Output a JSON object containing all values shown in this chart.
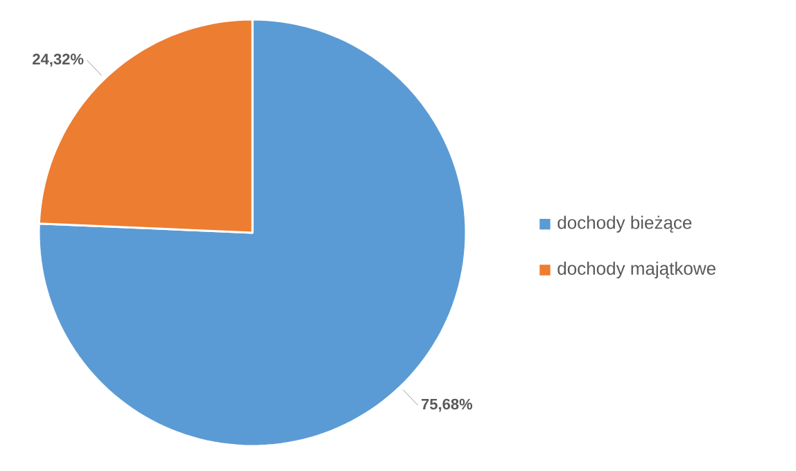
{
  "chart_data": {
    "type": "pie",
    "categories": [
      "dochody bieżące",
      "dochody majątkowe"
    ],
    "values": [
      75.68,
      24.32
    ],
    "colors": [
      "#5b9bd5",
      "#ed7d31"
    ],
    "value_labels": [
      "75,68%",
      "24,32%"
    ],
    "legend": "right"
  }
}
